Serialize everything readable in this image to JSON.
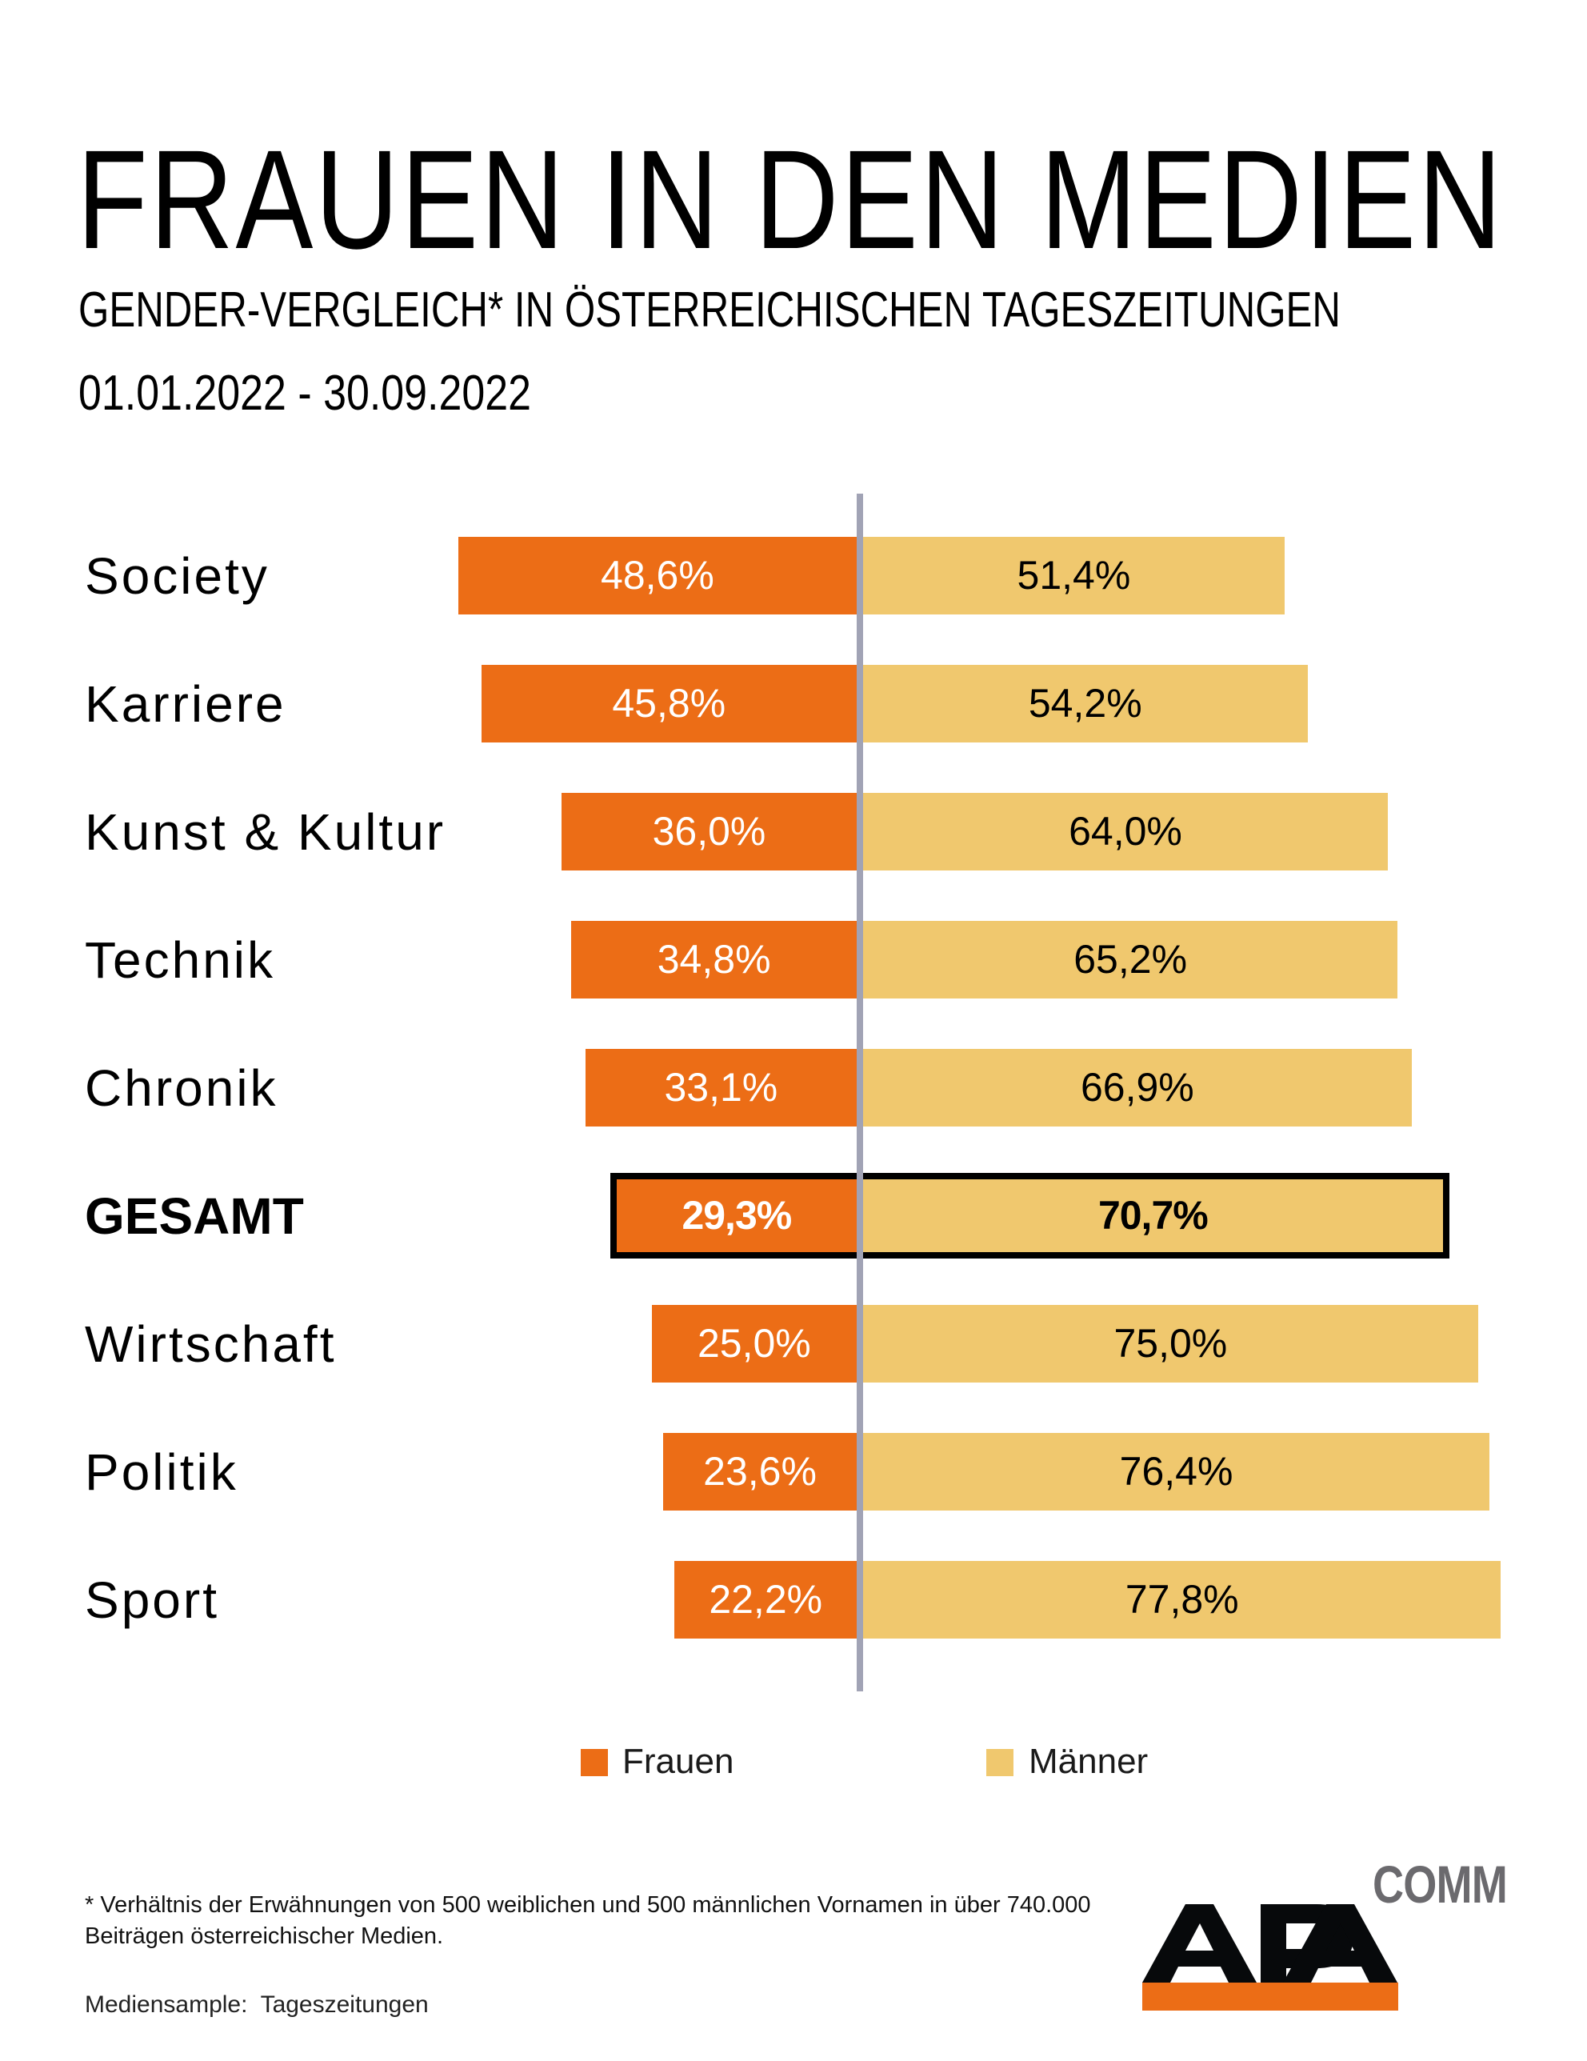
{
  "header": {
    "title": "FRAUEN IN DEN MEDIEN",
    "subtitle": "GENDER-VERGLEICH* IN ÖSTERREICHISCHEN TAGESZEITUNGEN",
    "date_range": "01.01.2022 - 30.09.2022"
  },
  "colors": {
    "women": "#ec6d16",
    "men": "#f0c86e",
    "axis": "#a1a3b5",
    "logo_gray": "#6b6a6e"
  },
  "chart_data": {
    "type": "bar",
    "orientation": "horizontal-diverging",
    "title": "FRAUEN IN DEN MEDIEN",
    "subtitle": "GENDER-VERGLEICH* IN ÖSTERREICHISCHEN TAGESZEITUNGEN",
    "xlabel": "",
    "ylabel": "",
    "unit": "%",
    "categories": [
      "Society",
      "Karriere",
      "Kunst & Kultur",
      "Technik",
      "Chronik",
      "GESAMT",
      "Wirtschaft",
      "Politik",
      "Sport"
    ],
    "highlight_category": "GESAMT",
    "series": [
      {
        "name": "Frauen",
        "side": "left",
        "values": [
          48.6,
          45.8,
          36.0,
          34.8,
          33.1,
          29.3,
          25.0,
          23.6,
          22.2
        ],
        "labels": [
          "48,6%",
          "45,8%",
          "36,0%",
          "34,8%",
          "33,1%",
          "29,3%",
          "25,0%",
          "23,6%",
          "22,2%"
        ]
      },
      {
        "name": "Männer",
        "side": "right",
        "values": [
          51.4,
          54.2,
          64.0,
          65.2,
          66.9,
          70.7,
          75.0,
          76.4,
          77.8
        ],
        "labels": [
          "51,4%",
          "54,2%",
          "64,0%",
          "65,2%",
          "66,9%",
          "70,7%",
          "75,0%",
          "76,4%",
          "77,8%"
        ]
      }
    ],
    "xlim": [
      0,
      100
    ],
    "grid": false,
    "legend": {
      "position": "bottom-center",
      "entries": [
        "Frauen",
        "Männer"
      ]
    }
  },
  "legend": {
    "women_label": "Frauen",
    "men_label": "Männer"
  },
  "footer": {
    "footnote": "* Verhältnis der Erwähnungen von 500 weiblichen und 500 männlichen Vornamen in über 740.000 Beiträgen österreichischer Medien.",
    "sample": "Mediensample:  Tageszeitungen"
  },
  "logo": {
    "main": "APA",
    "sub": "COMM"
  }
}
